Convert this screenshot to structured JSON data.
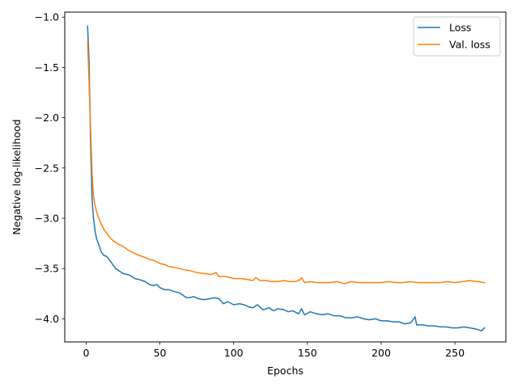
{
  "chart_data": {
    "type": "line",
    "title": "",
    "xlabel": "Epochs",
    "ylabel": "Negative log-likelihood",
    "xlim": [
      -14.5,
      284.5
    ],
    "ylim": [
      -4.23,
      -0.95
    ],
    "xticks": [
      0,
      50,
      100,
      150,
      200,
      250
    ],
    "yticks": [
      -4.0,
      -3.5,
      -3.0,
      -2.5,
      -2.0,
      -1.5,
      -1.0
    ],
    "xtick_labels": [
      "0",
      "50",
      "100",
      "150",
      "200",
      "250"
    ],
    "ytick_labels": [
      "−4.0",
      "−3.5",
      "−3.0",
      "−2.5",
      "−2.0",
      "−1.5",
      "−1.0"
    ],
    "grid": false,
    "legend": {
      "position": "top-right",
      "entries": [
        "Loss",
        "Val. loss"
      ]
    },
    "series": [
      {
        "name": "Loss",
        "color": "#1f77b4",
        "points": [
          [
            1,
            -1.09
          ],
          [
            2,
            -1.45
          ],
          [
            3,
            -2.25
          ],
          [
            4,
            -2.8
          ],
          [
            5,
            -3.0
          ],
          [
            6,
            -3.12
          ],
          [
            7,
            -3.2
          ],
          [
            8,
            -3.24
          ],
          [
            9,
            -3.28
          ],
          [
            10,
            -3.33
          ],
          [
            12,
            -3.37
          ],
          [
            14,
            -3.38
          ],
          [
            16,
            -3.42
          ],
          [
            18,
            -3.46
          ],
          [
            20,
            -3.5
          ],
          [
            22,
            -3.52
          ],
          [
            25,
            -3.55
          ],
          [
            28,
            -3.56
          ],
          [
            30,
            -3.57
          ],
          [
            33,
            -3.6
          ],
          [
            36,
            -3.61
          ],
          [
            40,
            -3.63
          ],
          [
            43,
            -3.66
          ],
          [
            46,
            -3.67
          ],
          [
            48,
            -3.66
          ],
          [
            50,
            -3.69
          ],
          [
            53,
            -3.71
          ],
          [
            56,
            -3.71
          ],
          [
            60,
            -3.73
          ],
          [
            63,
            -3.74
          ],
          [
            66,
            -3.77
          ],
          [
            68,
            -3.79
          ],
          [
            70,
            -3.79
          ],
          [
            73,
            -3.78
          ],
          [
            76,
            -3.8
          ],
          [
            80,
            -3.81
          ],
          [
            84,
            -3.8
          ],
          [
            87,
            -3.79
          ],
          [
            90,
            -3.8
          ],
          [
            93,
            -3.85
          ],
          [
            96,
            -3.83
          ],
          [
            100,
            -3.86
          ],
          [
            104,
            -3.85
          ],
          [
            107,
            -3.86
          ],
          [
            110,
            -3.88
          ],
          [
            113,
            -3.89
          ],
          [
            116,
            -3.86
          ],
          [
            120,
            -3.91
          ],
          [
            124,
            -3.89
          ],
          [
            127,
            -3.92
          ],
          [
            130,
            -3.9
          ],
          [
            134,
            -3.91
          ],
          [
            137,
            -3.93
          ],
          [
            140,
            -3.92
          ],
          [
            144,
            -3.95
          ],
          [
            146,
            -3.9
          ],
          [
            148,
            -3.96
          ],
          [
            152,
            -3.93
          ],
          [
            156,
            -3.95
          ],
          [
            160,
            -3.96
          ],
          [
            164,
            -3.95
          ],
          [
            168,
            -3.97
          ],
          [
            172,
            -3.97
          ],
          [
            176,
            -3.99
          ],
          [
            180,
            -3.99
          ],
          [
            184,
            -3.98
          ],
          [
            188,
            -4.0
          ],
          [
            192,
            -4.01
          ],
          [
            196,
            -4.0
          ],
          [
            200,
            -4.02
          ],
          [
            204,
            -4.02
          ],
          [
            208,
            -4.03
          ],
          [
            212,
            -4.03
          ],
          [
            216,
            -4.05
          ],
          [
            220,
            -4.04
          ],
          [
            223,
            -3.98
          ],
          [
            224,
            -4.06
          ],
          [
            228,
            -4.06
          ],
          [
            232,
            -4.07
          ],
          [
            236,
            -4.07
          ],
          [
            240,
            -4.08
          ],
          [
            244,
            -4.08
          ],
          [
            248,
            -4.09
          ],
          [
            252,
            -4.09
          ],
          [
            256,
            -4.08
          ],
          [
            260,
            -4.09
          ],
          [
            264,
            -4.1
          ],
          [
            268,
            -4.12
          ],
          [
            270,
            -4.09
          ]
        ]
      },
      {
        "name": "Val. loss",
        "color": "#ff7f0e",
        "points": [
          [
            1,
            -1.24
          ],
          [
            2,
            -1.65
          ],
          [
            3,
            -2.1
          ],
          [
            4,
            -2.55
          ],
          [
            5,
            -2.78
          ],
          [
            6,
            -2.87
          ],
          [
            7,
            -2.93
          ],
          [
            8,
            -2.98
          ],
          [
            10,
            -3.05
          ],
          [
            12,
            -3.11
          ],
          [
            14,
            -3.15
          ],
          [
            16,
            -3.19
          ],
          [
            18,
            -3.22
          ],
          [
            20,
            -3.24
          ],
          [
            22,
            -3.26
          ],
          [
            25,
            -3.28
          ],
          [
            28,
            -3.31
          ],
          [
            30,
            -3.33
          ],
          [
            33,
            -3.35
          ],
          [
            36,
            -3.37
          ],
          [
            40,
            -3.39
          ],
          [
            43,
            -3.41
          ],
          [
            46,
            -3.42
          ],
          [
            50,
            -3.45
          ],
          [
            53,
            -3.46
          ],
          [
            56,
            -3.48
          ],
          [
            60,
            -3.49
          ],
          [
            63,
            -3.5
          ],
          [
            66,
            -3.51
          ],
          [
            70,
            -3.52
          ],
          [
            75,
            -3.54
          ],
          [
            80,
            -3.55
          ],
          [
            85,
            -3.56
          ],
          [
            88,
            -3.54
          ],
          [
            90,
            -3.58
          ],
          [
            95,
            -3.58
          ],
          [
            100,
            -3.6
          ],
          [
            105,
            -3.6
          ],
          [
            110,
            -3.61
          ],
          [
            113,
            -3.62
          ],
          [
            115,
            -3.59
          ],
          [
            118,
            -3.62
          ],
          [
            122,
            -3.62
          ],
          [
            126,
            -3.63
          ],
          [
            130,
            -3.63
          ],
          [
            134,
            -3.62
          ],
          [
            138,
            -3.63
          ],
          [
            142,
            -3.63
          ],
          [
            145,
            -3.61
          ],
          [
            146,
            -3.59
          ],
          [
            148,
            -3.64
          ],
          [
            152,
            -3.63
          ],
          [
            156,
            -3.64
          ],
          [
            160,
            -3.64
          ],
          [
            165,
            -3.64
          ],
          [
            170,
            -3.63
          ],
          [
            175,
            -3.65
          ],
          [
            180,
            -3.63
          ],
          [
            185,
            -3.64
          ],
          [
            190,
            -3.64
          ],
          [
            195,
            -3.64
          ],
          [
            200,
            -3.64
          ],
          [
            205,
            -3.63
          ],
          [
            210,
            -3.64
          ],
          [
            215,
            -3.64
          ],
          [
            220,
            -3.63
          ],
          [
            225,
            -3.64
          ],
          [
            230,
            -3.64
          ],
          [
            235,
            -3.64
          ],
          [
            240,
            -3.64
          ],
          [
            245,
            -3.63
          ],
          [
            250,
            -3.64
          ],
          [
            255,
            -3.63
          ],
          [
            260,
            -3.62
          ],
          [
            265,
            -3.63
          ],
          [
            270,
            -3.64
          ]
        ]
      }
    ]
  }
}
